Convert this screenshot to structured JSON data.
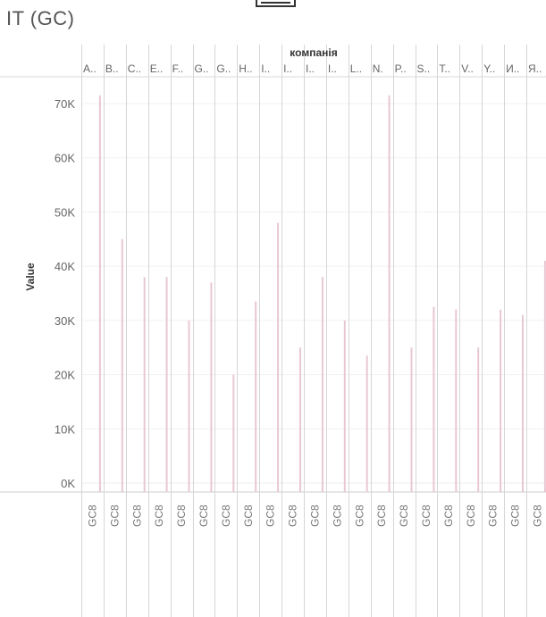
{
  "page": {
    "title": "IT (GC)"
  },
  "chart_data": {
    "type": "bar",
    "column_header": "компанія",
    "ylabel": "Value",
    "ylim": [
      0,
      72000
    ],
    "yticks": [
      0,
      10000,
      20000,
      30000,
      40000,
      50000,
      60000,
      70000
    ],
    "ytick_labels": [
      "0K",
      "10K",
      "20K",
      "30K",
      "40K",
      "50K",
      "60K",
      "70K"
    ],
    "bar_color": "#e8c8d2",
    "grid": true,
    "columns": [
      {
        "label": "A..",
        "category": "GC8",
        "value": 71500
      },
      {
        "label": "B..",
        "category": "GC8",
        "value": 45000
      },
      {
        "label": "C..",
        "category": "GC8",
        "value": 38000
      },
      {
        "label": "E..",
        "category": "GC8",
        "value": 38000
      },
      {
        "label": "F..",
        "category": "GC8",
        "value": 30000
      },
      {
        "label": "G..",
        "category": "GC8",
        "value": 37000
      },
      {
        "label": "G..",
        "category": "GC8",
        "value": 20000
      },
      {
        "label": "H..",
        "category": "GC8",
        "value": 33500
      },
      {
        "label": "I..",
        "category": "GC8",
        "value": 48000
      },
      {
        "label": "I..",
        "category": "GC8",
        "value": 25000
      },
      {
        "label": "I..",
        "category": "GC8",
        "value": 38000
      },
      {
        "label": "I..",
        "category": "GC8",
        "value": 30000
      },
      {
        "label": "L..",
        "category": "GC8",
        "value": 23500
      },
      {
        "label": "N.",
        "category": "GC8",
        "value": 71500
      },
      {
        "label": "P..",
        "category": "GC8",
        "value": 25000
      },
      {
        "label": "S..",
        "category": "GC8",
        "value": 32500
      },
      {
        "label": "T..",
        "category": "GC8",
        "value": 32000
      },
      {
        "label": "V..",
        "category": "GC8",
        "value": 25000
      },
      {
        "label": "Y..",
        "category": "GC8",
        "value": 32000
      },
      {
        "label": "И..",
        "category": "GC8",
        "value": 31000
      },
      {
        "label": "Я..",
        "category": "GC8",
        "value": 41000
      }
    ]
  }
}
